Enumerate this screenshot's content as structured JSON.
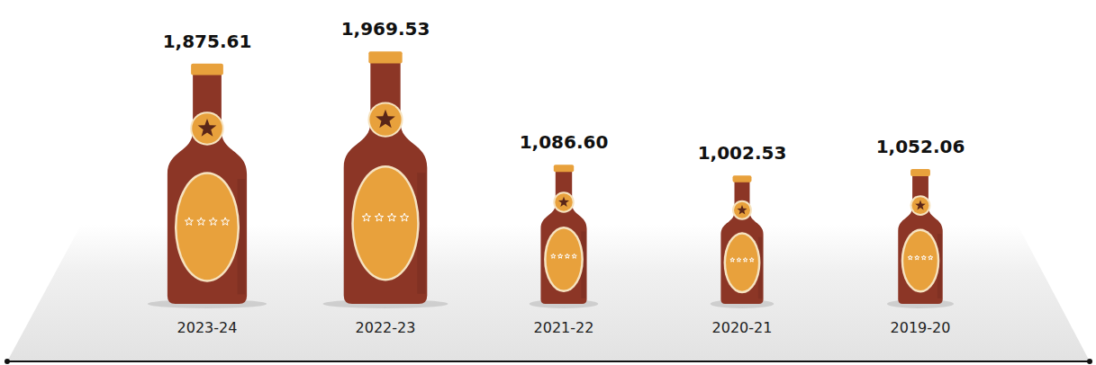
{
  "chart_data": {
    "type": "bar",
    "categories": [
      "2023-24",
      "2022-23",
      "2021-22",
      "2020-21",
      "2019-20"
    ],
    "values": [
      1875.61,
      1969.53,
      1086.6,
      1002.53,
      1052.06
    ],
    "value_labels": [
      "1,875.61",
      "1,969.53",
      "1,086.60",
      "1,002.53",
      "1,052.06"
    ],
    "color": "#8c3626",
    "ylim": [
      0,
      2000
    ],
    "yticks": [],
    "data_labels": true,
    "tick_labels": "x",
    "grid": false
  }
}
